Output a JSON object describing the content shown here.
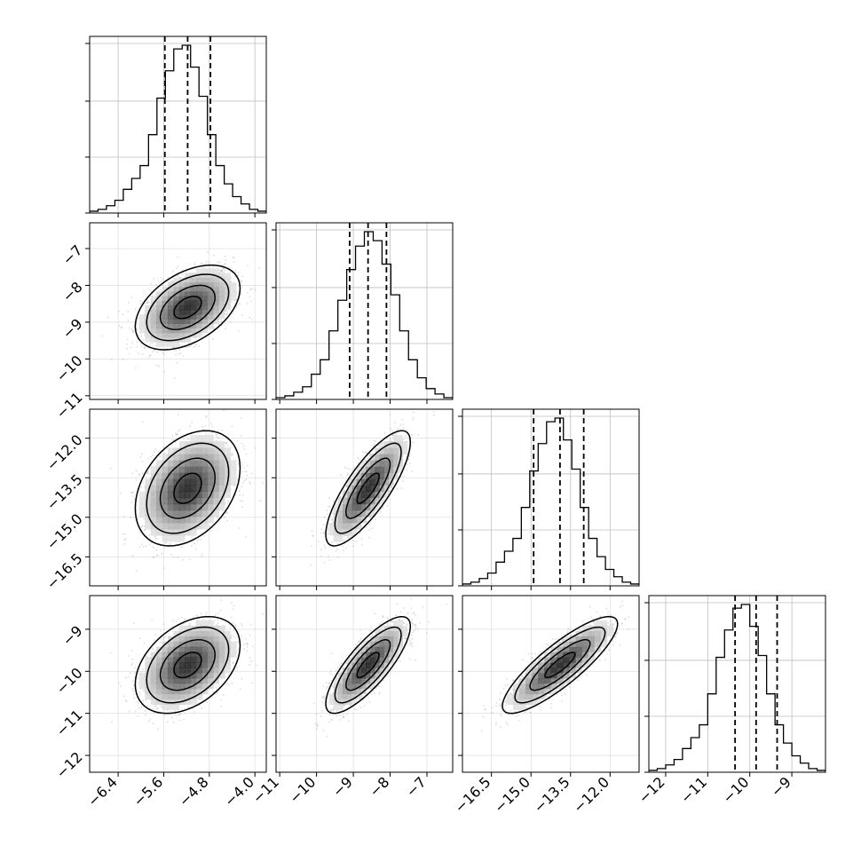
{
  "chart_data": {
    "type": "corner",
    "grid": true,
    "variables": [
      {
        "range": [
          -6.9,
          -3.8
        ],
        "ticks": [
          -6.4,
          -5.6,
          -4.8,
          -4.0
        ],
        "tick_labels": [
          "−6.4",
          "−5.6",
          "−4.8",
          "−4.0"
        ],
        "quantiles": [
          -5.58,
          -5.18,
          -4.78
        ],
        "hist": [
          1,
          2,
          4,
          7,
          13,
          19,
          26,
          43,
          63,
          78,
          90,
          92,
          80,
          64,
          43,
          26,
          16,
          9,
          5,
          2,
          1
        ]
      },
      {
        "range": [
          -11.1,
          -6.3
        ],
        "ticks": [
          -11,
          -10,
          -9,
          -8,
          -7
        ],
        "tick_labels": [
          "−11",
          "−10",
          "−9",
          "−8",
          "−7"
        ],
        "quantiles": [
          -9.1,
          -8.6,
          -8.1
        ],
        "hist": [
          1,
          2,
          4,
          7,
          14,
          22,
          38,
          55,
          72,
          85,
          93,
          88,
          75,
          58,
          38,
          22,
          12,
          6,
          3,
          1
        ]
      },
      {
        "range": [
          -17.6,
          -10.9
        ],
        "ticks": [
          -16.5,
          -15.0,
          -13.5,
          -12.0
        ],
        "tick_labels": [
          "−16.5",
          "−15.0",
          "−13.5",
          "−12.0"
        ],
        "quantiles": [
          -14.9,
          -13.9,
          -13.0
        ],
        "hist": [
          1,
          2,
          4,
          7,
          13,
          19,
          26,
          43,
          63,
          78,
          90,
          92,
          80,
          64,
          43,
          26,
          16,
          9,
          5,
          2,
          1
        ]
      },
      {
        "range": [
          -12.4,
          -8.2
        ],
        "ticks": [
          -12,
          -11,
          -10,
          -9
        ],
        "tick_labels": [
          "−12",
          "−11",
          "−10",
          "−9"
        ],
        "quantiles": [
          -10.35,
          -9.85,
          -9.35
        ],
        "hist": [
          1,
          2,
          4,
          7,
          13,
          19,
          26,
          43,
          63,
          78,
          90,
          92,
          80,
          64,
          43,
          26,
          16,
          9,
          5,
          2,
          1
        ]
      }
    ],
    "correlations": [
      [
        0,
        0.45,
        0.35,
        0.4
      ],
      [
        0.45,
        0,
        0.8,
        0.8
      ],
      [
        0.35,
        0.8,
        0,
        0.85
      ],
      [
        0.4,
        0.8,
        0.85,
        0
      ]
    ],
    "hist_ticks": [
      0,
      0.33,
      0.66,
      1.0
    ],
    "line_color": "#000000",
    "point_color": "#9a9a9a",
    "grid_color": "#bfbfbf"
  }
}
